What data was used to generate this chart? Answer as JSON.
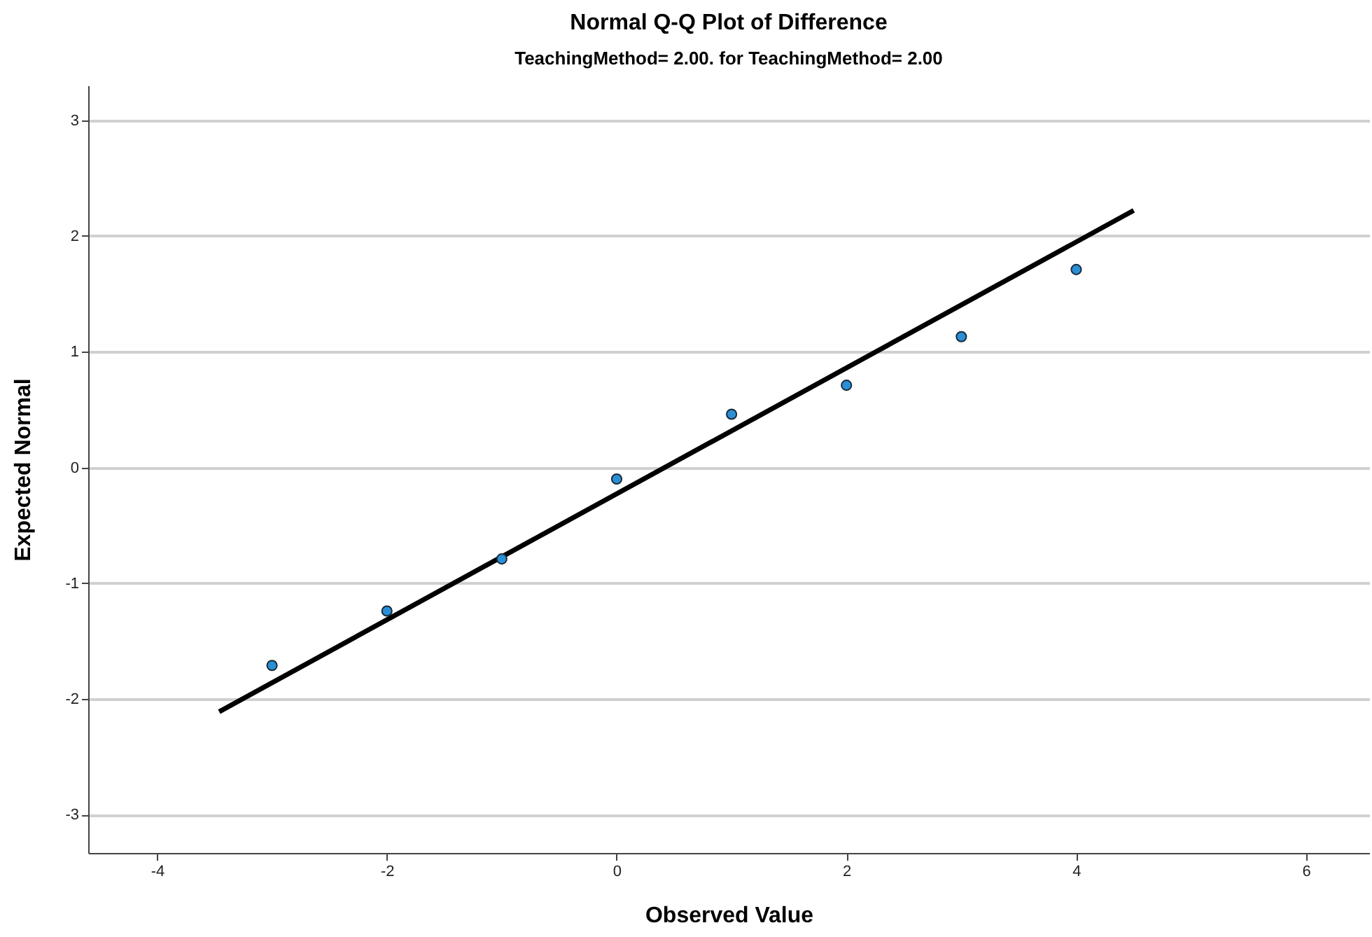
{
  "chart_data": {
    "type": "scatter",
    "title": "Normal Q-Q Plot of Difference",
    "subtitle": "TeachingMethod= 2.00.  for TeachingMethod= 2.00",
    "xlabel": "Observed Value",
    "ylabel": "Expected Normal",
    "xlim": [
      -4.6,
      6.55
    ],
    "ylim": [
      -3.33,
      3.3
    ],
    "xticks": [
      -4,
      -2,
      0,
      2,
      4,
      6
    ],
    "yticks": [
      -3,
      -2,
      -1,
      0,
      1,
      2,
      3
    ],
    "grid": "y",
    "series": [
      {
        "marker": "circle",
        "color": "#2b8fd6",
        "x": [
          -3,
          -2,
          -1,
          0,
          1,
          2,
          3,
          4
        ],
        "values": [
          -1.71,
          -1.24,
          -0.79,
          -0.1,
          0.46,
          0.71,
          1.13,
          1.71
        ]
      },
      {
        "type": "line",
        "marker": "none",
        "color": "#000000",
        "x": [
          -3.46,
          4.5
        ],
        "values": [
          -2.11,
          2.22
        ]
      }
    ]
  }
}
